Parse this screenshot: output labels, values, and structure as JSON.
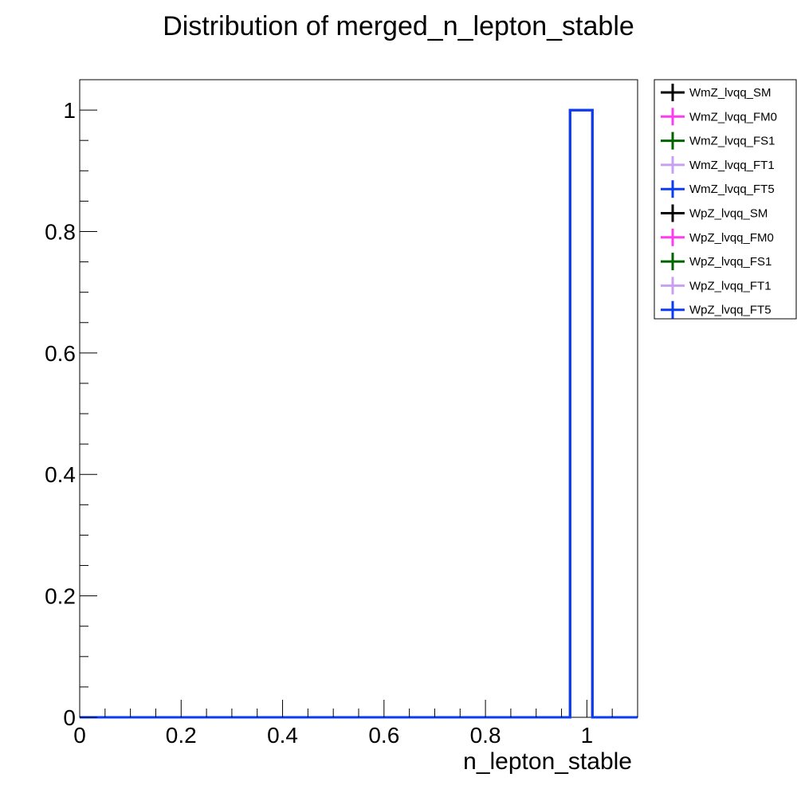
{
  "chart_data": {
    "type": "histogram",
    "title": "Distribution of merged_n_lepton_stable",
    "xlabel": "n_lepton_stable",
    "ylabel": "",
    "xlim": [
      0,
      1.1
    ],
    "ylim": [
      0,
      1.05
    ],
    "x_ticks": [
      0,
      0.2,
      0.4,
      0.6,
      0.8,
      1
    ],
    "x_tick_labels": [
      "0",
      "0.2",
      "0.4",
      "0.6",
      "0.8",
      "1"
    ],
    "y_ticks": [
      0,
      0.2,
      0.4,
      0.6,
      0.8,
      1
    ],
    "y_tick_labels": [
      "0",
      "0.2",
      "0.4",
      "0.6",
      "0.8",
      "1"
    ],
    "bin_edges": [
      0,
      0.967,
      1.011,
      1.1
    ],
    "series": [
      {
        "name": "WmZ_lvqq_SM",
        "color": "#000000",
        "values": [
          0,
          1,
          0
        ]
      },
      {
        "name": "WmZ_lvqq_FM0",
        "color": "#ff3cf0",
        "values": [
          0,
          1,
          0
        ]
      },
      {
        "name": "WmZ_lvqq_FS1",
        "color": "#006400",
        "values": [
          0,
          1,
          0
        ]
      },
      {
        "name": "WmZ_lvqq_FT1",
        "color": "#c8a0f0",
        "values": [
          0,
          1,
          0
        ]
      },
      {
        "name": "WmZ_lvqq_FT5",
        "color": "#0a3cf5",
        "values": [
          0,
          1,
          0
        ]
      },
      {
        "name": "WpZ_lvqq_SM",
        "color": "#000000",
        "values": [
          0,
          1,
          0
        ]
      },
      {
        "name": "WpZ_lvqq_FM0",
        "color": "#ff3cf0",
        "values": [
          0,
          1,
          0
        ]
      },
      {
        "name": "WpZ_lvqq_FS1",
        "color": "#006400",
        "values": [
          0,
          1,
          0
        ]
      },
      {
        "name": "WpZ_lvqq_FT1",
        "color": "#c8a0f0",
        "values": [
          0,
          1,
          0
        ]
      },
      {
        "name": "WpZ_lvqq_FT5",
        "color": "#0a3cf5",
        "values": [
          0,
          1,
          0
        ]
      }
    ],
    "legend_position": "top-right outside",
    "grid": false
  }
}
